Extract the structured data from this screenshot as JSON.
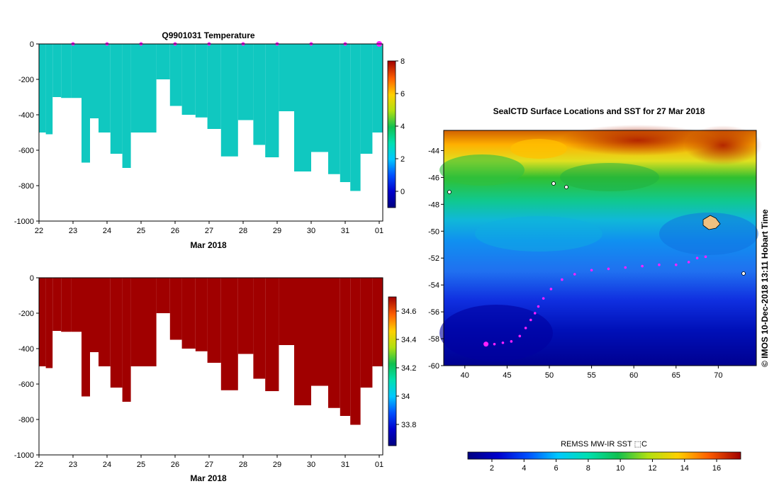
{
  "chart_data": [
    {
      "type": "heatmap",
      "title": "Q9901031  Temperature",
      "xlabel": "Mar 2018",
      "x_ticks": [
        "22",
        "23",
        "24",
        "25",
        "26",
        "27",
        "28",
        "29",
        "30",
        "31",
        "01"
      ],
      "y_ticks": [
        "0",
        "-200",
        "-400",
        "-600",
        "-800",
        "-1000"
      ],
      "ylim": [
        -1000,
        0
      ],
      "colorbar_ticks": [
        "8",
        "6",
        "4",
        "2",
        "0"
      ],
      "colorbar_range": [
        -1,
        8
      ],
      "profiles": [
        {
          "day": 22.1,
          "depth": 500
        },
        {
          "day": 22.3,
          "depth": 510
        },
        {
          "day": 22.5,
          "depth": 300
        },
        {
          "day": 22.8,
          "depth": 305
        },
        {
          "day": 23.1,
          "depth": 305
        },
        {
          "day": 23.4,
          "depth": 670
        },
        {
          "day": 23.6,
          "depth": 420
        },
        {
          "day": 23.9,
          "depth": 500
        },
        {
          "day": 24.3,
          "depth": 620
        },
        {
          "day": 24.6,
          "depth": 700
        },
        {
          "day": 24.8,
          "depth": 500
        },
        {
          "day": 25.2,
          "depth": 500
        },
        {
          "day": 25.7,
          "depth": 200
        },
        {
          "day": 26.0,
          "depth": 350
        },
        {
          "day": 26.4,
          "depth": 400
        },
        {
          "day": 26.8,
          "depth": 415
        },
        {
          "day": 27.1,
          "depth": 480
        },
        {
          "day": 27.6,
          "depth": 635
        },
        {
          "day": 28.1,
          "depth": 430
        },
        {
          "day": 28.5,
          "depth": 570
        },
        {
          "day": 28.8,
          "depth": 640
        },
        {
          "day": 29.3,
          "depth": 380
        },
        {
          "day": 29.7,
          "depth": 720
        },
        {
          "day": 30.3,
          "depth": 610
        },
        {
          "day": 30.7,
          "depth": 735
        },
        {
          "day": 31.0,
          "depth": 780
        },
        {
          "day": 31.3,
          "depth": 830
        },
        {
          "day": 31.6,
          "depth": 620
        },
        {
          "day": 32.0,
          "depth": 500
        }
      ],
      "surface_markers": [
        23,
        24,
        25,
        26,
        27,
        28,
        29,
        30,
        31,
        32
      ]
    },
    {
      "type": "heatmap",
      "title": "",
      "xlabel": "Mar 2018",
      "x_ticks": [
        "22",
        "23",
        "24",
        "25",
        "26",
        "27",
        "28",
        "29",
        "30",
        "31",
        "01"
      ],
      "y_ticks": [
        "0",
        "-200",
        "-400",
        "-600",
        "-800",
        "-1000"
      ],
      "ylim": [
        -1000,
        0
      ],
      "colorbar_ticks": [
        "34.6",
        "34.4",
        "34.2",
        "34",
        "33.8"
      ],
      "colorbar_range": [
        33.65,
        34.7
      ]
    },
    {
      "type": "heatmap",
      "title": "SealCTD Surface Locations and SST for 27 Mar 2018",
      "x_ticks": [
        "40",
        "45",
        "50",
        "55",
        "60",
        "65",
        "70"
      ],
      "y_ticks": [
        "-44",
        "-46",
        "-48",
        "-50",
        "-52",
        "-54",
        "-56",
        "-58",
        "-60"
      ],
      "xlim": [
        37.5,
        74.5
      ],
      "ylim": [
        -60,
        -42.5
      ],
      "colorbar_label": "REMSS MW-IR SST ⬚C",
      "colorbar_ticks": [
        "2",
        "4",
        "6",
        "8",
        "10",
        "12",
        "14",
        "16"
      ],
      "colorbar_range": [
        0.5,
        17.5
      ],
      "side_label": "©  IMOS 10-Dec-2018 13:11 Hobart Time",
      "track": [
        [
          42.5,
          -58.4
        ],
        [
          43.5,
          -58.4
        ],
        [
          44.5,
          -58.3
        ],
        [
          45.5,
          -58.2
        ],
        [
          46.5,
          -57.8
        ],
        [
          47.2,
          -57.2
        ],
        [
          47.8,
          -56.6
        ],
        [
          48.3,
          -56.1
        ],
        [
          48.7,
          -55.6
        ],
        [
          49.3,
          -55.0
        ],
        [
          50.2,
          -54.3
        ],
        [
          51.5,
          -53.6
        ],
        [
          53.0,
          -53.2
        ],
        [
          55.0,
          -52.9
        ],
        [
          57.0,
          -52.8
        ],
        [
          59.0,
          -52.7
        ],
        [
          61.0,
          -52.6
        ],
        [
          63.0,
          -52.5
        ],
        [
          65.0,
          -52.5
        ],
        [
          66.5,
          -52.3
        ],
        [
          67.5,
          -52.0
        ],
        [
          68.5,
          -51.9
        ]
      ]
    }
  ]
}
